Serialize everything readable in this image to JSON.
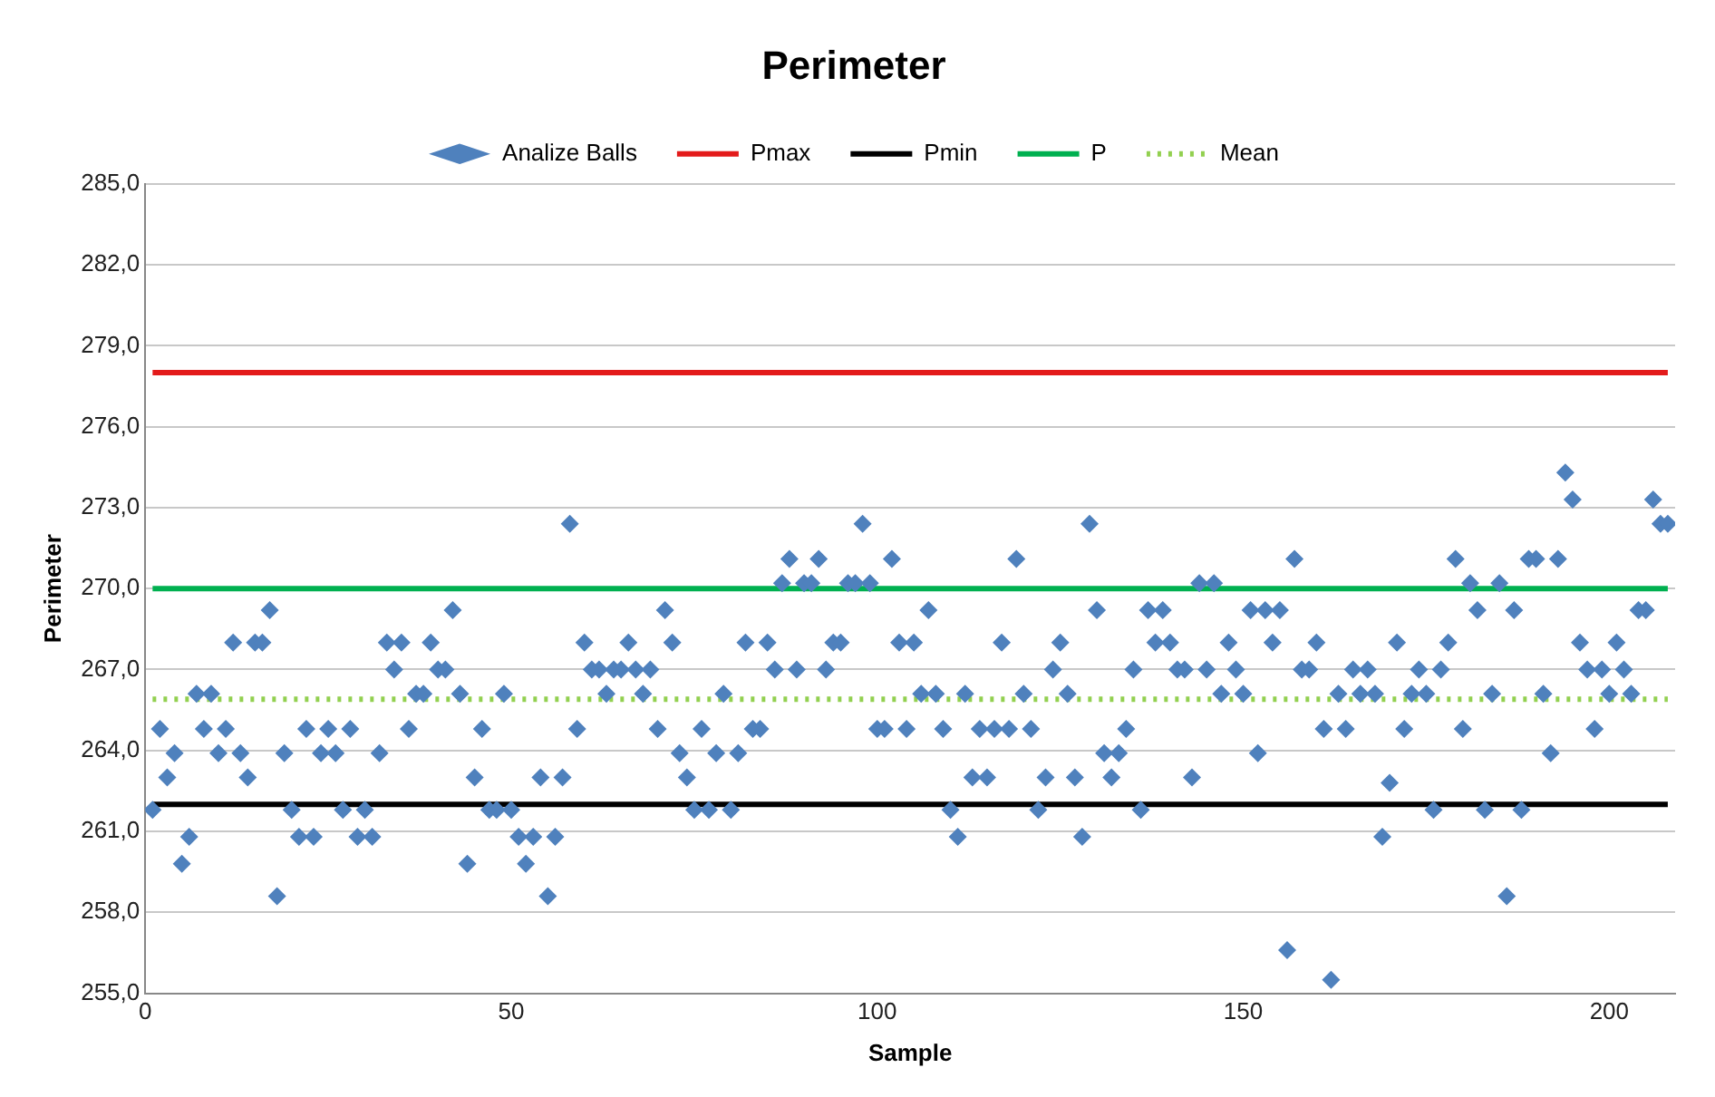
{
  "chart_data": {
    "type": "scatter",
    "title": "Perimeter",
    "xlabel": "Sample",
    "ylabel": "Perimeter",
    "xlim": [
      0,
      209
    ],
    "xticks": [
      0,
      50,
      100,
      150,
      200
    ],
    "ylim": [
      255,
      285
    ],
    "yticks": [
      {
        "value": 255,
        "label": "255,0"
      },
      {
        "value": 258,
        "label": "258,0"
      },
      {
        "value": 261,
        "label": "261,0"
      },
      {
        "value": 264,
        "label": "264,0"
      },
      {
        "value": 267,
        "label": "267,0"
      },
      {
        "value": 270,
        "label": "270,0"
      },
      {
        "value": 273,
        "label": "273,0"
      },
      {
        "value": 276,
        "label": "276,0"
      },
      {
        "value": 279,
        "label": "279,0"
      },
      {
        "value": 282,
        "label": "282,0"
      },
      {
        "value": 285,
        "label": "285,0"
      }
    ],
    "grid": "y",
    "legend": "top",
    "series": [
      {
        "name": "Analize Balls",
        "type": "scatter",
        "color": "#4f81bd",
        "marker": "diamond",
        "x": [
          1,
          2,
          3,
          4,
          5,
          6,
          7,
          8,
          9,
          10,
          11,
          12,
          13,
          14,
          15,
          16,
          17,
          18,
          19,
          20,
          21,
          22,
          23,
          24,
          25,
          26,
          27,
          28,
          29,
          30,
          31,
          32,
          33,
          34,
          35,
          36,
          37,
          38,
          39,
          40,
          41,
          42,
          43,
          44,
          45,
          46,
          47,
          48,
          49,
          50,
          51,
          52,
          53,
          54,
          55,
          56,
          57,
          58,
          59,
          60,
          61,
          62,
          63,
          64,
          65,
          66,
          67,
          68,
          69,
          70,
          71,
          72,
          73,
          74,
          75,
          76,
          77,
          78,
          79,
          80,
          81,
          82,
          83,
          84,
          85,
          86,
          87,
          88,
          89,
          90,
          91,
          92,
          93,
          94,
          95,
          96,
          97,
          98,
          99,
          100,
          101,
          102,
          103,
          104,
          105,
          106,
          107,
          108,
          109,
          110,
          111,
          112,
          113,
          114,
          115,
          116,
          117,
          118,
          119,
          120,
          121,
          122,
          123,
          124,
          125,
          126,
          127,
          128,
          129,
          130,
          131,
          132,
          133,
          134,
          135,
          136,
          137,
          138,
          139,
          140,
          141,
          142,
          143,
          144,
          145,
          146,
          147,
          148,
          149,
          150,
          151,
          152,
          153,
          154,
          155,
          156,
          157,
          158,
          159,
          160,
          161,
          162,
          163,
          164,
          165,
          166,
          167,
          168,
          169,
          170,
          171,
          172,
          173,
          174,
          175,
          176,
          177,
          178,
          179,
          180,
          181,
          182,
          183,
          184,
          185,
          186,
          187,
          188,
          189,
          190,
          191,
          192,
          193,
          194,
          195,
          196,
          197,
          198,
          199,
          200,
          201,
          202,
          203,
          204,
          205,
          206,
          207,
          208
        ],
        "values": [
          261.8,
          264.8,
          263.0,
          263.9,
          259.8,
          260.8,
          266.1,
          264.8,
          266.1,
          263.9,
          264.8,
          268.0,
          263.9,
          263.0,
          268.0,
          268.0,
          269.2,
          258.6,
          263.9,
          261.8,
          260.8,
          264.8,
          260.8,
          263.9,
          264.8,
          263.9,
          261.8,
          264.8,
          260.8,
          261.8,
          260.8,
          263.9,
          268.0,
          267.0,
          268.0,
          264.8,
          266.1,
          266.1,
          268.0,
          267.0,
          267.0,
          269.2,
          266.1,
          259.8,
          263.0,
          264.8,
          261.8,
          261.8,
          266.1,
          261.8,
          260.8,
          259.8,
          260.8,
          263.0,
          258.6,
          260.8,
          263.0,
          272.4,
          264.8,
          268.0,
          267.0,
          267.0,
          266.1,
          267.0,
          267.0,
          268.0,
          267.0,
          266.1,
          267.0,
          264.8,
          269.2,
          268.0,
          263.9,
          263.0,
          261.8,
          264.8,
          261.8,
          263.9,
          266.1,
          261.8,
          263.9,
          268.0,
          264.8,
          264.8,
          268.0,
          267.0,
          270.2,
          271.1,
          267.0,
          270.2,
          270.2,
          271.1,
          267.0,
          268.0,
          268.0,
          270.2,
          270.2,
          272.4,
          270.2,
          264.8,
          264.8,
          271.1,
          268.0,
          264.8,
          268.0,
          266.1,
          269.2,
          266.1,
          264.8,
          261.8,
          260.8,
          266.1,
          263.0,
          264.8,
          263.0,
          264.8,
          268.0,
          264.8,
          271.1,
          266.1,
          264.8,
          261.8,
          263.0,
          267.0,
          268.0,
          266.1,
          263.0,
          260.8,
          272.4,
          269.2,
          263.9,
          263.0,
          263.9,
          264.8,
          267.0,
          261.8,
          269.2,
          268.0,
          269.2,
          268.0,
          267.0,
          267.0,
          263.0,
          270.2,
          267.0,
          270.2,
          266.1,
          268.0,
          267.0,
          266.1,
          269.2,
          263.9,
          269.2,
          268.0,
          269.2,
          256.6,
          271.1,
          267.0,
          267.0,
          268.0,
          264.8,
          255.5,
          266.1,
          264.8,
          267.0,
          266.1,
          267.0,
          266.1,
          260.8,
          262.8,
          268.0,
          264.8,
          266.1,
          267.0,
          266.1,
          261.8,
          267.0,
          268.0,
          271.1,
          264.8,
          270.2,
          269.2,
          261.8,
          266.1,
          270.2,
          258.6,
          269.2,
          261.8,
          271.1,
          271.1,
          266.1,
          263.9,
          271.1,
          274.3,
          273.3,
          268.0,
          267.0,
          264.8,
          267.0,
          266.1,
          268.0,
          267.0,
          266.1,
          269.2,
          269.2,
          273.3,
          272.4,
          272.4
        ]
      },
      {
        "name": "Pmax",
        "type": "line",
        "color": "#e31b1b",
        "line_style": "solid",
        "x": [
          1,
          208
        ],
        "values": [
          278,
          278
        ]
      },
      {
        "name": "Pmin",
        "type": "line",
        "color": "#000000",
        "line_style": "solid",
        "x": [
          1,
          208
        ],
        "values": [
          262,
          262
        ]
      },
      {
        "name": "P",
        "type": "line",
        "color": "#00b050",
        "line_style": "solid",
        "x": [
          1,
          208
        ],
        "values": [
          270,
          270
        ]
      },
      {
        "name": "Mean",
        "type": "line",
        "color": "#92d050",
        "line_style": "dotted",
        "x": [
          1,
          208
        ],
        "values": [
          265.9,
          265.9
        ]
      }
    ]
  }
}
